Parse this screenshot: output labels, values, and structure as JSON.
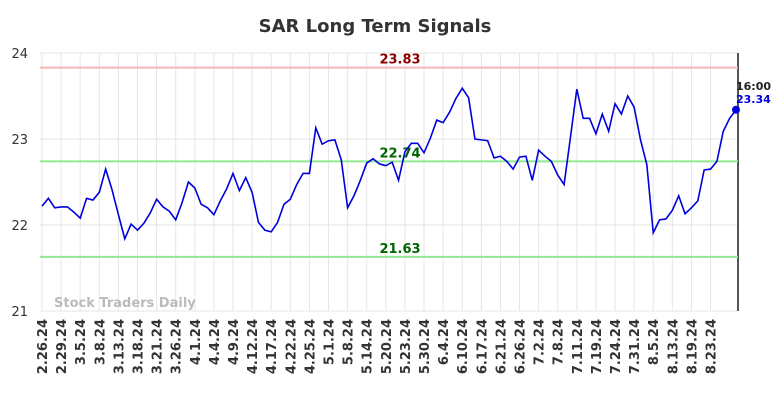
{
  "chart_data": {
    "type": "line",
    "title": "SAR Long Term Signals",
    "watermark": "Stock Traders Daily",
    "last_time": "16:00",
    "categories": [
      "2.26.24",
      null,
      null,
      "2.29.24",
      null,
      null,
      "3.5.24",
      null,
      null,
      "3.8.24",
      null,
      null,
      "3.13.24",
      null,
      null,
      "3.18.24",
      null,
      null,
      "3.21.24",
      null,
      null,
      "3.26.24",
      null,
      null,
      "4.1.24",
      null,
      null,
      "4.4.24",
      null,
      null,
      "4.9.24",
      null,
      null,
      "4.12.24",
      null,
      null,
      "4.17.24",
      null,
      null,
      "4.22.24",
      null,
      null,
      "4.25.24",
      null,
      null,
      "5.1.24",
      null,
      null,
      "5.8.24",
      null,
      null,
      "5.14.24",
      null,
      null,
      "5.20.24",
      null,
      null,
      "5.23.24",
      null,
      null,
      "5.30.24",
      null,
      null,
      "6.4.24",
      null,
      null,
      "6.10.24",
      null,
      null,
      "6.17.24",
      null,
      null,
      "6.21.24",
      null,
      null,
      "6.26.24",
      null,
      null,
      "7.2.24",
      null,
      null,
      "7.8.24",
      null,
      null,
      "7.11.24",
      null,
      null,
      "7.19.24",
      null,
      null,
      "7.24.24",
      null,
      null,
      "7.31.24",
      null,
      null,
      "8.5.24",
      null,
      null,
      "8.13.24",
      null,
      null,
      "8.19.24",
      null,
      null,
      "8.23.24",
      null,
      null,
      null,
      null
    ],
    "values": [
      22.22,
      22.31,
      22.2,
      22.21,
      22.21,
      22.15,
      22.08,
      22.31,
      22.29,
      22.38,
      22.65,
      22.41,
      22.12,
      21.84,
      22.01,
      21.94,
      22.02,
      22.14,
      22.3,
      22.21,
      22.16,
      22.06,
      22.26,
      22.5,
      22.43,
      22.24,
      22.2,
      22.12,
      22.28,
      22.42,
      22.6,
      22.4,
      22.55,
      22.38,
      22.03,
      21.94,
      21.92,
      22.03,
      22.24,
      22.3,
      22.47,
      22.6,
      22.6,
      23.13,
      22.94,
      22.98,
      22.99,
      22.76,
      22.2,
      22.34,
      22.52,
      22.72,
      22.77,
      22.71,
      22.69,
      22.73,
      22.52,
      22.85,
      22.95,
      22.95,
      22.84,
      23.01,
      23.22,
      23.19,
      23.31,
      23.47,
      23.59,
      23.48,
      23.0,
      22.99,
      22.98,
      22.78,
      22.8,
      22.74,
      22.65,
      22.79,
      22.8,
      22.52,
      22.87,
      22.8,
      22.74,
      22.58,
      22.47,
      23.02,
      23.58,
      23.24,
      23.24,
      23.06,
      23.29,
      23.09,
      23.41,
      23.29,
      23.5,
      23.37,
      22.99,
      22.7,
      21.91,
      22.06,
      22.07,
      22.17,
      22.34,
      22.13,
      22.2,
      22.28,
      22.64,
      22.65,
      22.74,
      23.09,
      23.24,
      23.34
    ],
    "color": "#0000dd",
    "reference_lines": [
      {
        "value": 23.83,
        "color": "#f4b8b8",
        "label_color": "#8b0000"
      },
      {
        "value": 22.74,
        "color": "#90e890",
        "label_color": "#006400"
      },
      {
        "value": 21.63,
        "color": "#90e890",
        "label_color": "#006400"
      }
    ],
    "ylim": [
      21,
      24
    ],
    "yticks": [
      21,
      22,
      23,
      24
    ],
    "grid": true
  }
}
